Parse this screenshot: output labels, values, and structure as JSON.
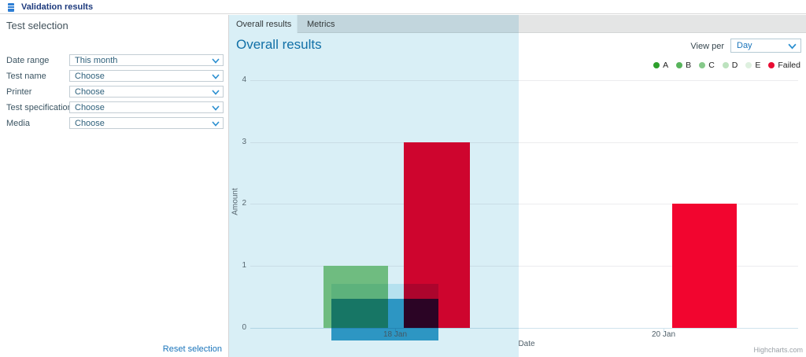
{
  "header": {
    "title": "Validation results"
  },
  "sidebar": {
    "heading": "Test selection",
    "filters": [
      {
        "label": "Date range",
        "value": "This month"
      },
      {
        "label": "Test name",
        "value": "Choose"
      },
      {
        "label": "Printer",
        "value": "Choose"
      },
      {
        "label": "Test specification",
        "value": "Choose"
      },
      {
        "label": "Media",
        "value": "Choose"
      }
    ],
    "reset_label": "Reset selection"
  },
  "tabs": [
    {
      "label": "Overall results"
    },
    {
      "label": "Metrics"
    }
  ],
  "view_per": {
    "label": "View per",
    "value": "Day"
  },
  "credit": "Highcharts.com",
  "chart_data": {
    "type": "bar",
    "title": "Overall results",
    "xlabel": "Date",
    "ylabel": "Amount",
    "ylim": [
      0,
      4
    ],
    "yticks": [
      "0",
      "1",
      "2",
      "3",
      "4"
    ],
    "xticks": [
      "18 Jan",
      "20 Jan"
    ],
    "grid": true,
    "legend_position": "top-right",
    "legend": [
      {
        "label": "A",
        "color": "#2da02c"
      },
      {
        "label": "B",
        "color": "#58b45c"
      },
      {
        "label": "C",
        "color": "#86c98a"
      },
      {
        "label": "D",
        "color": "#bce2be"
      },
      {
        "label": "E",
        "color": "#def0df"
      },
      {
        "label": "Failed",
        "color": "#e90c33"
      }
    ],
    "series": [
      {
        "name": "C",
        "color": "#82c985",
        "points": [
          {
            "x": "18 Jan",
            "y": 1
          }
        ]
      },
      {
        "name": "Failed",
        "color": "#f2052f",
        "points": [
          {
            "x": "18 Jan",
            "y": 3
          },
          {
            "x": "20 Jan",
            "y": 2
          }
        ]
      }
    ],
    "selection_highlight": {
      "x": "18 Jan",
      "upper": 0.71,
      "lower": 0.47
    }
  }
}
